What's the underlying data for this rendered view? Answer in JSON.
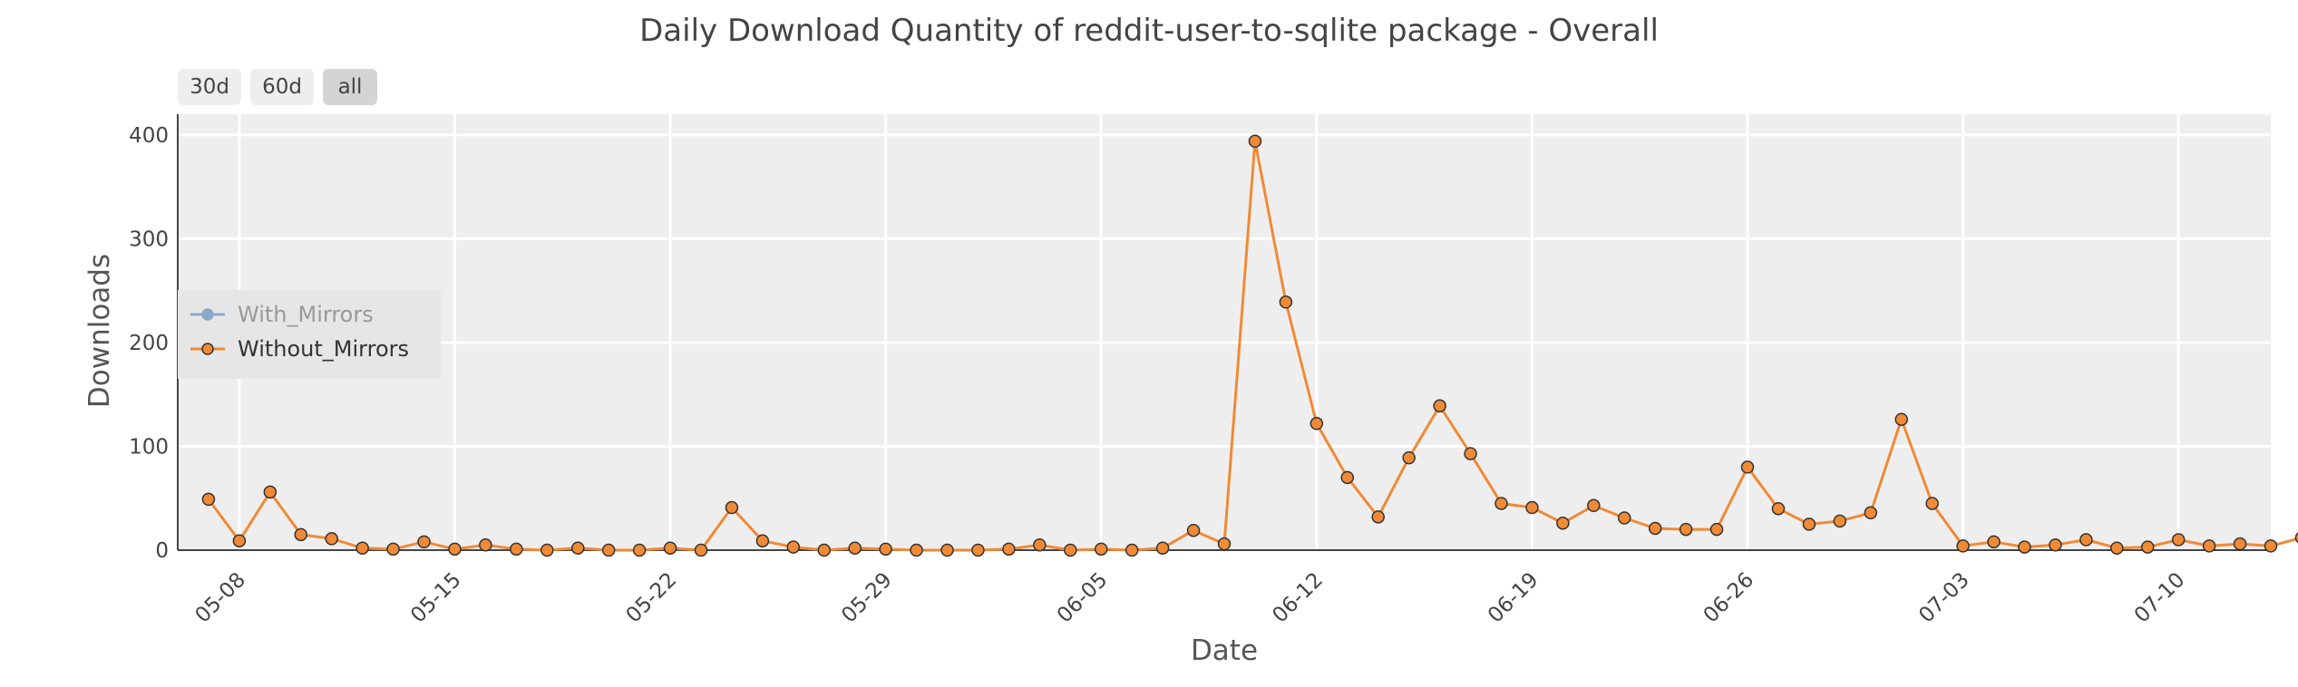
{
  "title": "Daily Download Quantity of reddit-user-to-sqlite package - Overall",
  "range_buttons": [
    "30d",
    "60d",
    "all"
  ],
  "active_range": "all",
  "colors": {
    "plot_bg": "#eeeeee",
    "grid": "#ffffff",
    "with_mirrors": "#8ea8c8",
    "without_mirrors": "#f08a36",
    "marker_edge": "#333333"
  },
  "legend": {
    "position": "left",
    "items": [
      {
        "label": "With_Mirrors",
        "state": "hidden"
      },
      {
        "label": "Without_Mirrors",
        "state": "visible"
      }
    ]
  },
  "chart_data": {
    "type": "line",
    "title": "Daily Download Quantity of reddit-user-to-sqlite package - Overall",
    "xlabel": "Date",
    "ylabel": "Downloads",
    "ylim": [
      0,
      420
    ],
    "yticks": [
      0,
      100,
      200,
      300,
      400
    ],
    "xlim": [
      "05-06",
      "07-13"
    ],
    "xticks": [
      "05-08",
      "05-15",
      "05-22",
      "05-29",
      "06-05",
      "06-12",
      "06-19",
      "06-26",
      "07-03",
      "07-10"
    ],
    "grid": true,
    "x": [
      "05-07",
      "05-08",
      "05-09",
      "05-10",
      "05-11",
      "05-12",
      "05-13",
      "05-14",
      "05-15",
      "05-16",
      "05-17",
      "05-18",
      "05-19",
      "05-20",
      "05-21",
      "05-22",
      "05-23",
      "05-24",
      "05-25",
      "05-26",
      "05-27",
      "05-28",
      "05-29",
      "05-30",
      "05-31",
      "06-01",
      "06-02",
      "06-03",
      "06-04",
      "06-05",
      "06-06",
      "06-07",
      "06-08",
      "06-09",
      "06-10",
      "06-11",
      "06-12",
      "06-13",
      "06-14",
      "06-15",
      "06-16",
      "06-17",
      "06-18",
      "06-19",
      "06-20",
      "06-21",
      "06-22",
      "06-23",
      "06-24",
      "06-25",
      "06-26",
      "06-27",
      "06-28",
      "06-29",
      "06-30",
      "07-01",
      "07-02",
      "07-03",
      "07-04",
      "07-05",
      "07-06",
      "07-07",
      "07-08",
      "07-09",
      "07-10",
      "07-11",
      "07-12",
      "07-13",
      "07-14"
    ],
    "series": [
      {
        "name": "Without_Mirrors",
        "values": [
          49,
          9,
          56,
          15,
          11,
          2,
          1,
          8,
          1,
          5,
          1,
          0,
          2,
          0,
          0,
          2,
          0,
          41,
          9,
          3,
          0,
          2,
          1,
          0,
          0,
          0,
          1,
          5,
          0,
          1,
          0,
          2,
          19,
          6,
          394,
          239,
          122,
          70,
          32,
          89,
          139,
          93,
          45,
          41,
          26,
          43,
          31,
          21,
          20,
          20,
          80,
          40,
          25,
          28,
          36,
          126,
          45,
          4,
          8,
          3,
          5,
          10,
          2,
          3,
          10,
          4,
          6,
          4,
          12
        ]
      }
    ]
  }
}
